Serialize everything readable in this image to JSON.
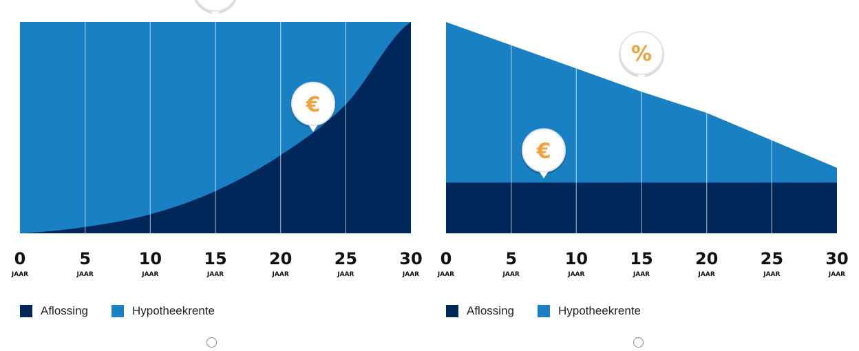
{
  "colors": {
    "aflossing": "#00275a",
    "hypotheekrente": "#1a80c4",
    "pin_symbol": "#f0a23c"
  },
  "chart_data": [
    {
      "type": "area",
      "x": [
        0,
        5,
        10,
        15,
        20,
        25,
        30
      ],
      "x_ticks": [
        "0",
        "5",
        "10",
        "15",
        "20",
        "25",
        "30"
      ],
      "x_unit": "JAAR",
      "ylim": [
        0,
        1
      ],
      "grid": "vertical",
      "series": [
        {
          "name": "Aflossing",
          "values": [
            0,
            0.03,
            0.09,
            0.2,
            0.37,
            0.61,
            1.0
          ]
        },
        {
          "name": "Hypotheekrente",
          "values": [
            1,
            0.97,
            0.91,
            0.8,
            0.63,
            0.39,
            0.0
          ]
        }
      ],
      "annotations": [
        {
          "symbol": "%",
          "x": 15,
          "y": 1.0
        },
        {
          "symbol": "€",
          "x": 22.5,
          "y": 0.46
        }
      ],
      "legend": [
        {
          "label": "Aflossing"
        },
        {
          "label": "Hypotheekrente"
        }
      ]
    },
    {
      "type": "area",
      "x": [
        0,
        5,
        10,
        15,
        20,
        25,
        30
      ],
      "x_ticks": [
        "0",
        "5",
        "10",
        "15",
        "20",
        "25",
        "30"
      ],
      "x_unit": "JAAR",
      "ylim": [
        0,
        1
      ],
      "grid": "vertical",
      "series": [
        {
          "name": "Aflossing",
          "values": [
            0.24,
            0.24,
            0.24,
            0.24,
            0.24,
            0.24,
            0.24
          ]
        },
        {
          "name": "Hypotheekrente",
          "values": [
            0.76,
            0.65,
            0.54,
            0.43,
            0.33,
            0.2,
            0.07
          ]
        }
      ],
      "annotations": [
        {
          "symbol": "%",
          "x": 15,
          "y": 0.7
        },
        {
          "symbol": "€",
          "x": 7.5,
          "y": 0.24
        }
      ],
      "legend": [
        {
          "label": "Aflossing"
        },
        {
          "label": "Hypotheekrente"
        }
      ]
    }
  ]
}
